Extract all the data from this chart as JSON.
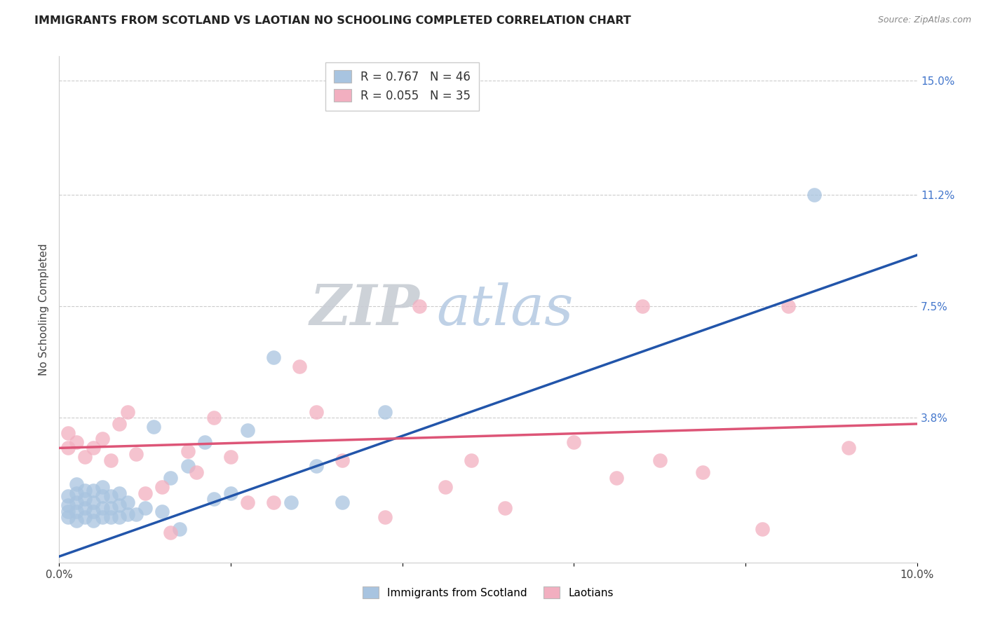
{
  "title": "IMMIGRANTS FROM SCOTLAND VS LAOTIAN NO SCHOOLING COMPLETED CORRELATION CHART",
  "source": "Source: ZipAtlas.com",
  "ylabel": "No Schooling Completed",
  "xlim": [
    0.0,
    0.1
  ],
  "ylim": [
    -0.01,
    0.158
  ],
  "xtick_positions": [
    0.0,
    0.02,
    0.04,
    0.06,
    0.08,
    0.1
  ],
  "xtick_labels": [
    "0.0%",
    "",
    "",
    "",
    "",
    "10.0%"
  ],
  "ytick_values_right": [
    0.038,
    0.075,
    0.112,
    0.15
  ],
  "ytick_labels_right": [
    "3.8%",
    "7.5%",
    "11.2%",
    "15.0%"
  ],
  "r_scotland": 0.767,
  "n_scotland": 46,
  "r_laotian": 0.055,
  "n_laotian": 35,
  "scotland_color": "#a8c4e0",
  "laotian_color": "#f2afc0",
  "scotland_line_color": "#2255aa",
  "laotian_line_color": "#dd5577",
  "legend_label_scotland": "Immigrants from Scotland",
  "legend_label_laotian": "Laotians",
  "watermark_zip": "ZIP",
  "watermark_atlas": "atlas",
  "scotland_x": [
    0.001,
    0.001,
    0.001,
    0.001,
    0.002,
    0.002,
    0.002,
    0.002,
    0.002,
    0.003,
    0.003,
    0.003,
    0.003,
    0.004,
    0.004,
    0.004,
    0.004,
    0.005,
    0.005,
    0.005,
    0.005,
    0.006,
    0.006,
    0.006,
    0.007,
    0.007,
    0.007,
    0.008,
    0.008,
    0.009,
    0.01,
    0.011,
    0.012,
    0.013,
    0.014,
    0.015,
    0.017,
    0.018,
    0.02,
    0.022,
    0.025,
    0.027,
    0.03,
    0.033,
    0.038,
    0.088
  ],
  "scotland_y": [
    0.005,
    0.007,
    0.009,
    0.012,
    0.004,
    0.007,
    0.01,
    0.013,
    0.016,
    0.005,
    0.008,
    0.011,
    0.014,
    0.004,
    0.007,
    0.01,
    0.014,
    0.005,
    0.008,
    0.012,
    0.015,
    0.005,
    0.008,
    0.012,
    0.005,
    0.009,
    0.013,
    0.006,
    0.01,
    0.006,
    0.008,
    0.035,
    0.007,
    0.018,
    0.001,
    0.022,
    0.03,
    0.011,
    0.013,
    0.034,
    0.058,
    0.01,
    0.022,
    0.01,
    0.04,
    0.112
  ],
  "laotian_x": [
    0.001,
    0.001,
    0.002,
    0.003,
    0.004,
    0.005,
    0.006,
    0.007,
    0.008,
    0.009,
    0.01,
    0.012,
    0.013,
    0.015,
    0.016,
    0.018,
    0.02,
    0.022,
    0.025,
    0.028,
    0.03,
    0.033,
    0.038,
    0.042,
    0.045,
    0.048,
    0.052,
    0.06,
    0.065,
    0.068,
    0.07,
    0.075,
    0.082,
    0.085,
    0.092
  ],
  "laotian_y": [
    0.033,
    0.028,
    0.03,
    0.025,
    0.028,
    0.031,
    0.024,
    0.036,
    0.04,
    0.026,
    0.013,
    0.015,
    0.0,
    0.027,
    0.02,
    0.038,
    0.025,
    0.01,
    0.01,
    0.055,
    0.04,
    0.024,
    0.005,
    0.075,
    0.015,
    0.024,
    0.008,
    0.03,
    0.018,
    0.075,
    0.024,
    0.02,
    0.001,
    0.075,
    0.028
  ],
  "scotland_trendline_x": [
    0.0,
    0.1
  ],
  "scotland_trendline_y": [
    -0.008,
    0.092
  ],
  "laotian_trendline_x": [
    0.0,
    0.1
  ],
  "laotian_trendline_y": [
    0.028,
    0.036
  ]
}
